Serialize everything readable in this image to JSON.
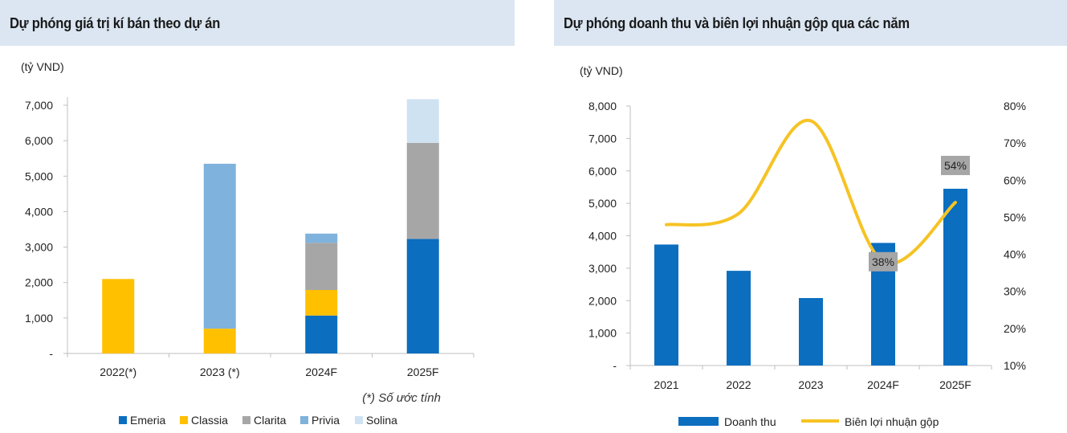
{
  "left_panel": {
    "title": "Dự phóng giá trị kí bán theo dự án",
    "footnote": "(*) Số ước tính"
  },
  "right_panel": {
    "title": "Dự phóng doanh thu và biên lợi nhuận gộp qua các năm"
  },
  "colors": {
    "Emeria": "#0b6ebf",
    "Classia": "#ffc000",
    "Clarita": "#a6a6a6",
    "Privia": "#7fb2dc",
    "Solina": "#cfe2f1",
    "revenue": "#0b6ebf",
    "margin": "#f6c324",
    "label_box": "#a6a6a6"
  },
  "chart_data": [
    {
      "type": "bar",
      "stacked": true,
      "title": "Dự phóng giá trị kí bán theo dự án",
      "unit_label": "(tỷ VND)",
      "categories": [
        "2022(*)",
        "2023 (*)",
        "2024F",
        "2025F"
      ],
      "series": [
        {
          "name": "Emeria",
          "values": [
            0,
            0,
            1070,
            3230
          ]
        },
        {
          "name": "Classia",
          "values": [
            2100,
            700,
            720,
            0
          ]
        },
        {
          "name": "Clarita",
          "values": [
            0,
            0,
            1330,
            2710
          ]
        },
        {
          "name": "Privia",
          "values": [
            0,
            4650,
            260,
            0
          ]
        },
        {
          "name": "Solina",
          "values": [
            0,
            0,
            0,
            1230
          ]
        }
      ],
      "ylim": [
        0,
        7000
      ],
      "yticks": [
        0,
        1000,
        2000,
        3000,
        4000,
        5000,
        6000,
        7000
      ],
      "ytick_labels": [
        "-",
        "1,000",
        "2,000",
        "3,000",
        "4,000",
        "5,000",
        "6,000",
        "7,000"
      ],
      "legend_position": "bottom"
    },
    {
      "type": "bar+line",
      "title": "Dự phóng doanh thu và biên lợi nhuận gộp qua các năm",
      "unit_label": "(tỷ VND)",
      "categories": [
        "2021",
        "2022",
        "2023",
        "2024F",
        "2025F"
      ],
      "series": [
        {
          "name": "Doanh thu",
          "type": "bar",
          "axis": "left",
          "values": [
            3730,
            2920,
            2080,
            3780,
            5450
          ]
        },
        {
          "name": "Biên lợi nhuận gộp",
          "type": "line",
          "axis": "right",
          "values": [
            48,
            51,
            76,
            38,
            54
          ],
          "unit": "%"
        }
      ],
      "ylim": [
        0,
        8000
      ],
      "yticks": [
        0,
        1000,
        2000,
        3000,
        4000,
        5000,
        6000,
        7000,
        8000
      ],
      "ytick_labels": [
        "-",
        "1,000",
        "2,000",
        "3,000",
        "4,000",
        "5,000",
        "6,000",
        "7,000",
        "8,000"
      ],
      "y2lim": [
        10,
        80
      ],
      "y2ticks": [
        10,
        20,
        30,
        40,
        50,
        60,
        70,
        80
      ],
      "y2tick_labels": [
        "10%",
        "20%",
        "30%",
        "40%",
        "50%",
        "60%",
        "70%",
        "80%"
      ],
      "data_labels": [
        {
          "category": "2024F",
          "text": "38%"
        },
        {
          "category": "2025F",
          "text": "54%"
        }
      ],
      "legend_position": "bottom"
    }
  ]
}
